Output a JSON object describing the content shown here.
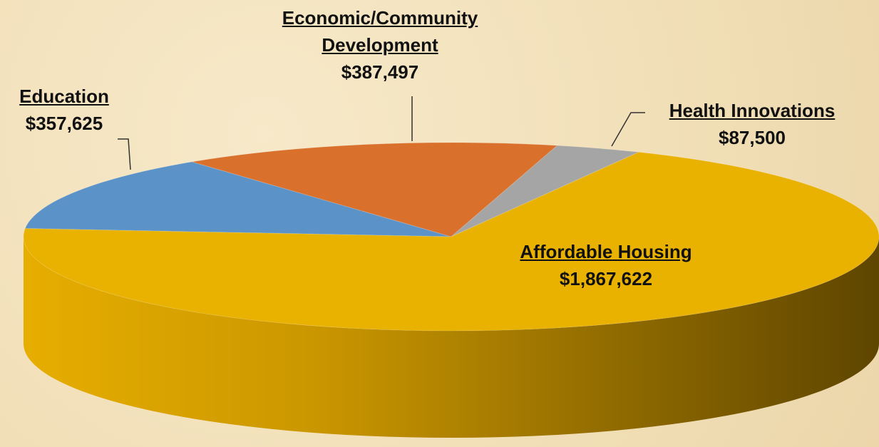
{
  "chart_data": {
    "type": "pie",
    "categories": [
      "Education",
      "Economic/Community Development",
      "Health Innovations",
      "Affordable Housing"
    ],
    "values": [
      357625,
      387497,
      87500,
      1867622
    ],
    "value_labels": [
      "$357,625",
      "$387,497",
      "$87,500",
      "$1,867,622"
    ],
    "colors": [
      "#5b93c9",
      "#d9702c",
      "#a5a5a5",
      "#e9b200"
    ]
  }
}
